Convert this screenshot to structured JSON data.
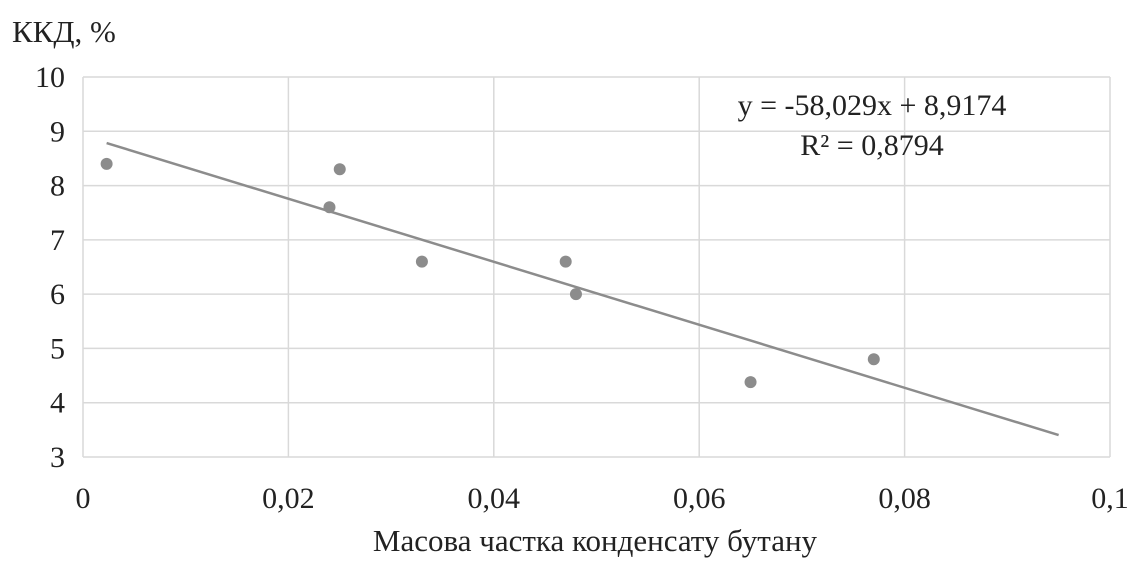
{
  "chart_data": {
    "type": "scatter",
    "title": "",
    "xlabel": "Масова частка конденсату бутану",
    "ylabel": "ККД, %",
    "xlim": [
      0,
      0.1
    ],
    "ylim": [
      3,
      10
    ],
    "x_ticks": [
      0,
      0.02,
      0.04,
      0.06,
      0.08,
      0.1
    ],
    "x_tick_labels": [
      "0",
      "0,02",
      "0,04",
      "0,06",
      "0,08",
      "0,1"
    ],
    "y_ticks": [
      3,
      4,
      5,
      6,
      7,
      8,
      9,
      10
    ],
    "y_tick_labels": [
      "3",
      "4",
      "5",
      "6",
      "7",
      "8",
      "9",
      "10"
    ],
    "grid": true,
    "legend": "none",
    "series": [
      {
        "points": [
          {
            "x": 0.0023,
            "y": 8.4
          },
          {
            "x": 0.024,
            "y": 7.6
          },
          {
            "x": 0.025,
            "y": 8.3
          },
          {
            "x": 0.033,
            "y": 6.6
          },
          {
            "x": 0.047,
            "y": 6.6
          },
          {
            "x": 0.048,
            "y": 6.0
          },
          {
            "x": 0.065,
            "y": 4.38
          },
          {
            "x": 0.077,
            "y": 4.8
          }
        ]
      }
    ],
    "trendline": {
      "type": "linear",
      "slope": -58.029,
      "intercept": 8.9174,
      "x_range": [
        0.0023,
        0.095
      ],
      "equation_label": "y = -58,029x + 8,9174",
      "r2_label": "R² = 0,8794"
    },
    "colors": {
      "points": "#8c8c8c",
      "trendline": "#8c8c8c",
      "grid": "#d9d9d9",
      "text": "#222222"
    }
  }
}
